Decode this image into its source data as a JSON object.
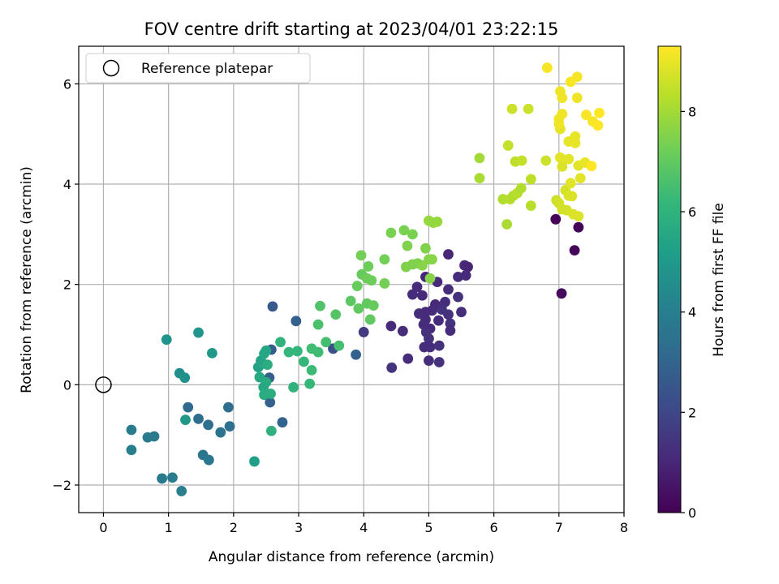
{
  "chart_data": {
    "type": "scatter",
    "title": "FOV centre drift starting at 2023/04/01 23:22:15",
    "xlabel": "Angular distance from reference (arcmin)",
    "ylabel": "Rotation from reference (arcmin)",
    "xlim": [
      -0.38,
      8.0
    ],
    "ylim": [
      -2.55,
      6.75
    ],
    "xticks": [
      "0",
      "1",
      "2",
      "3",
      "4",
      "5",
      "6",
      "7",
      "8"
    ],
    "yticks": [
      "−2",
      "0",
      "2",
      "4",
      "6"
    ],
    "grid": true,
    "legend": {
      "position": "top-left",
      "label": "Reference platepar",
      "marker": "open-circle"
    },
    "reference_point": {
      "x": 0,
      "y": 0
    },
    "colorbar": {
      "label": "Hours from first FF file",
      "range": [
        0,
        9.3
      ],
      "ticks": [
        "0",
        "2",
        "4",
        "6",
        "8"
      ],
      "colormap": "viridis",
      "stops": [
        "#440154",
        "#482878",
        "#3e4989",
        "#31688e",
        "#26828e",
        "#1f9e89",
        "#35b779",
        "#6ece58",
        "#b5de2b",
        "#fde725"
      ]
    },
    "points": [
      {
        "x": 6.95,
        "y": 3.3,
        "t": 0.1
      },
      {
        "x": 7.3,
        "y": 3.14,
        "t": 0.05
      },
      {
        "x": 7.24,
        "y": 2.68,
        "t": 0.15
      },
      {
        "x": 7.04,
        "y": 1.82,
        "t": 0.3
      },
      {
        "x": 5.3,
        "y": 2.6,
        "t": 1.0
      },
      {
        "x": 5.55,
        "y": 2.38,
        "t": 1.1
      },
      {
        "x": 5.6,
        "y": 2.35,
        "t": 1.0
      },
      {
        "x": 5.57,
        "y": 2.18,
        "t": 1.1
      },
      {
        "x": 5.45,
        "y": 2.15,
        "t": 1.2
      },
      {
        "x": 5.13,
        "y": 2.05,
        "t": 1.1
      },
      {
        "x": 4.95,
        "y": 2.15,
        "t": 1.0
      },
      {
        "x": 4.82,
        "y": 1.95,
        "t": 1.1
      },
      {
        "x": 4.75,
        "y": 1.8,
        "t": 1.2
      },
      {
        "x": 4.9,
        "y": 1.78,
        "t": 1.1
      },
      {
        "x": 5.3,
        "y": 1.9,
        "t": 1.2
      },
      {
        "x": 5.45,
        "y": 1.75,
        "t": 1.3
      },
      {
        "x": 5.25,
        "y": 1.65,
        "t": 1.2
      },
      {
        "x": 5.1,
        "y": 1.6,
        "t": 1.1
      },
      {
        "x": 5.2,
        "y": 1.5,
        "t": 1.3
      },
      {
        "x": 5.05,
        "y": 1.48,
        "t": 1.2
      },
      {
        "x": 4.95,
        "y": 1.45,
        "t": 1.1
      },
      {
        "x": 4.85,
        "y": 1.42,
        "t": 1.2
      },
      {
        "x": 5.3,
        "y": 1.4,
        "t": 1.3
      },
      {
        "x": 5.5,
        "y": 1.45,
        "t": 1.2
      },
      {
        "x": 4.95,
        "y": 1.3,
        "t": 1.1
      },
      {
        "x": 5.15,
        "y": 1.28,
        "t": 1.2
      },
      {
        "x": 5.33,
        "y": 1.22,
        "t": 1.3
      },
      {
        "x": 4.92,
        "y": 1.2,
        "t": 1.2
      },
      {
        "x": 5.02,
        "y": 1.12,
        "t": 1.1
      },
      {
        "x": 5.33,
        "y": 1.08,
        "t": 1.2
      },
      {
        "x": 4.96,
        "y": 1.05,
        "t": 1.3
      },
      {
        "x": 4.6,
        "y": 1.07,
        "t": 1.2
      },
      {
        "x": 4.42,
        "y": 1.17,
        "t": 1.1
      },
      {
        "x": 5.0,
        "y": 0.92,
        "t": 1.3
      },
      {
        "x": 4.93,
        "y": 0.75,
        "t": 1.2
      },
      {
        "x": 5.02,
        "y": 0.75,
        "t": 1.2
      },
      {
        "x": 5.16,
        "y": 0.78,
        "t": 1.3
      },
      {
        "x": 4.68,
        "y": 0.52,
        "t": 1.2
      },
      {
        "x": 5.0,
        "y": 0.48,
        "t": 1.2
      },
      {
        "x": 5.16,
        "y": 0.45,
        "t": 1.3
      },
      {
        "x": 4.43,
        "y": 0.34,
        "t": 1.4
      },
      {
        "x": 4.0,
        "y": 1.05,
        "t": 1.6
      },
      {
        "x": 3.53,
        "y": 0.72,
        "t": 2.3
      },
      {
        "x": 2.6,
        "y": 1.56,
        "t": 2.6
      },
      {
        "x": 2.96,
        "y": 1.27,
        "t": 2.8
      },
      {
        "x": 3.88,
        "y": 0.6,
        "t": 2.9
      },
      {
        "x": 2.58,
        "y": 0.7,
        "t": 2.7
      },
      {
        "x": 2.55,
        "y": 0.14,
        "t": 2.8
      },
      {
        "x": 2.56,
        "y": -0.35,
        "t": 2.9
      },
      {
        "x": 2.75,
        "y": -0.75,
        "t": 3.0
      },
      {
        "x": 1.3,
        "y": -0.45,
        "t": 3.2
      },
      {
        "x": 1.46,
        "y": -0.68,
        "t": 3.3
      },
      {
        "x": 1.61,
        "y": -0.8,
        "t": 3.4
      },
      {
        "x": 1.92,
        "y": -0.45,
        "t": 3.3
      },
      {
        "x": 1.94,
        "y": -0.83,
        "t": 3.4
      },
      {
        "x": 1.8,
        "y": -0.95,
        "t": 3.5
      },
      {
        "x": 1.53,
        "y": -1.4,
        "t": 3.6
      },
      {
        "x": 1.62,
        "y": -1.5,
        "t": 3.7
      },
      {
        "x": 0.68,
        "y": -1.05,
        "t": 3.8
      },
      {
        "x": 0.78,
        "y": -1.03,
        "t": 3.8
      },
      {
        "x": 0.43,
        "y": -0.9,
        "t": 3.9
      },
      {
        "x": 0.43,
        "y": -1.3,
        "t": 4.0
      },
      {
        "x": 0.9,
        "y": -1.87,
        "t": 3.8
      },
      {
        "x": 1.06,
        "y": -1.85,
        "t": 3.9
      },
      {
        "x": 1.2,
        "y": -2.12,
        "t": 4.0
      },
      {
        "x": 1.17,
        "y": 0.23,
        "t": 4.6
      },
      {
        "x": 1.25,
        "y": 0.14,
        "t": 4.7
      },
      {
        "x": 0.97,
        "y": 0.9,
        "t": 4.8
      },
      {
        "x": 1.46,
        "y": 1.04,
        "t": 4.8
      },
      {
        "x": 1.67,
        "y": 0.63,
        "t": 5.0
      },
      {
        "x": 1.26,
        "y": -0.7,
        "t": 4.9
      },
      {
        "x": 2.32,
        "y": -1.53,
        "t": 5.2
      },
      {
        "x": 2.38,
        "y": 0.35,
        "t": 5.3
      },
      {
        "x": 2.45,
        "y": 0.42,
        "t": 5.5
      },
      {
        "x": 2.42,
        "y": 0.48,
        "t": 5.4
      },
      {
        "x": 2.47,
        "y": 0.62,
        "t": 5.6
      },
      {
        "x": 2.5,
        "y": 0.68,
        "t": 5.5
      },
      {
        "x": 2.4,
        "y": 0.15,
        "t": 5.6
      },
      {
        "x": 2.5,
        "y": 0.05,
        "t": 5.7
      },
      {
        "x": 2.46,
        "y": -0.05,
        "t": 5.6
      },
      {
        "x": 2.47,
        "y": -0.2,
        "t": 5.7
      },
      {
        "x": 2.57,
        "y": -0.18,
        "t": 5.8
      },
      {
        "x": 2.52,
        "y": 0.4,
        "t": 5.8
      },
      {
        "x": 2.58,
        "y": -0.92,
        "t": 5.9
      },
      {
        "x": 2.72,
        "y": 0.85,
        "t": 6.0
      },
      {
        "x": 2.85,
        "y": 0.65,
        "t": 6.1
      },
      {
        "x": 2.98,
        "y": 0.67,
        "t": 6.1
      },
      {
        "x": 3.08,
        "y": 0.46,
        "t": 6.2
      },
      {
        "x": 2.92,
        "y": -0.05,
        "t": 6.0
      },
      {
        "x": 3.17,
        "y": 0.02,
        "t": 6.2
      },
      {
        "x": 3.2,
        "y": 0.29,
        "t": 6.3
      },
      {
        "x": 3.2,
        "y": 0.72,
        "t": 6.4
      },
      {
        "x": 3.3,
        "y": 0.65,
        "t": 6.4
      },
      {
        "x": 3.42,
        "y": 0.85,
        "t": 6.5
      },
      {
        "x": 3.62,
        "y": 0.78,
        "t": 6.5
      },
      {
        "x": 3.3,
        "y": 1.2,
        "t": 6.6
      },
      {
        "x": 3.33,
        "y": 1.57,
        "t": 6.7
      },
      {
        "x": 3.57,
        "y": 1.4,
        "t": 6.8
      },
      {
        "x": 3.8,
        "y": 1.67,
        "t": 6.9
      },
      {
        "x": 3.92,
        "y": 1.52,
        "t": 7.0
      },
      {
        "x": 4.05,
        "y": 1.62,
        "t": 7.0
      },
      {
        "x": 4.1,
        "y": 1.3,
        "t": 7.0
      },
      {
        "x": 4.15,
        "y": 1.58,
        "t": 7.1
      },
      {
        "x": 3.9,
        "y": 1.97,
        "t": 7.1
      },
      {
        "x": 3.97,
        "y": 2.2,
        "t": 7.1
      },
      {
        "x": 4.05,
        "y": 2.12,
        "t": 7.2
      },
      {
        "x": 4.12,
        "y": 2.08,
        "t": 7.2
      },
      {
        "x": 4.32,
        "y": 2.02,
        "t": 7.3
      },
      {
        "x": 4.07,
        "y": 2.36,
        "t": 7.2
      },
      {
        "x": 3.96,
        "y": 2.58,
        "t": 7.3
      },
      {
        "x": 4.32,
        "y": 2.5,
        "t": 7.3
      },
      {
        "x": 4.42,
        "y": 3.03,
        "t": 7.4
      },
      {
        "x": 4.62,
        "y": 3.08,
        "t": 7.4
      },
      {
        "x": 4.75,
        "y": 3.0,
        "t": 7.4
      },
      {
        "x": 4.67,
        "y": 2.77,
        "t": 7.5
      },
      {
        "x": 4.65,
        "y": 2.35,
        "t": 7.5
      },
      {
        "x": 4.75,
        "y": 2.4,
        "t": 7.5
      },
      {
        "x": 4.83,
        "y": 2.42,
        "t": 7.5
      },
      {
        "x": 4.9,
        "y": 2.38,
        "t": 7.6
      },
      {
        "x": 4.95,
        "y": 2.72,
        "t": 7.5
      },
      {
        "x": 5.0,
        "y": 2.5,
        "t": 7.6
      },
      {
        "x": 5.05,
        "y": 2.5,
        "t": 7.6
      },
      {
        "x": 5.02,
        "y": 2.12,
        "t": 7.6
      },
      {
        "x": 5.0,
        "y": 3.27,
        "t": 7.8
      },
      {
        "x": 5.07,
        "y": 3.23,
        "t": 7.8
      },
      {
        "x": 5.13,
        "y": 3.25,
        "t": 7.8
      },
      {
        "x": 5.78,
        "y": 4.52,
        "t": 8.0
      },
      {
        "x": 5.78,
        "y": 4.12,
        "t": 8.1
      },
      {
        "x": 6.14,
        "y": 3.7,
        "t": 8.2
      },
      {
        "x": 6.2,
        "y": 3.2,
        "t": 8.1
      },
      {
        "x": 6.25,
        "y": 3.7,
        "t": 8.3
      },
      {
        "x": 6.3,
        "y": 3.77,
        "t": 8.2
      },
      {
        "x": 6.36,
        "y": 3.82,
        "t": 8.3
      },
      {
        "x": 6.42,
        "y": 3.92,
        "t": 8.2
      },
      {
        "x": 6.57,
        "y": 3.57,
        "t": 8.3
      },
      {
        "x": 6.57,
        "y": 4.1,
        "t": 8.4
      },
      {
        "x": 6.33,
        "y": 4.45,
        "t": 8.4
      },
      {
        "x": 6.43,
        "y": 4.47,
        "t": 8.5
      },
      {
        "x": 6.22,
        "y": 4.77,
        "t": 8.5
      },
      {
        "x": 6.28,
        "y": 5.5,
        "t": 8.6
      },
      {
        "x": 6.53,
        "y": 5.5,
        "t": 8.6
      },
      {
        "x": 6.8,
        "y": 4.47,
        "t": 8.6
      },
      {
        "x": 6.96,
        "y": 3.68,
        "t": 8.6
      },
      {
        "x": 7.0,
        "y": 3.62,
        "t": 8.7
      },
      {
        "x": 7.05,
        "y": 3.5,
        "t": 8.7
      },
      {
        "x": 7.12,
        "y": 3.48,
        "t": 8.7
      },
      {
        "x": 7.1,
        "y": 3.88,
        "t": 8.7
      },
      {
        "x": 7.15,
        "y": 3.77,
        "t": 8.8
      },
      {
        "x": 7.2,
        "y": 3.76,
        "t": 8.8
      },
      {
        "x": 7.22,
        "y": 3.4,
        "t": 8.8
      },
      {
        "x": 7.3,
        "y": 3.36,
        "t": 8.8
      },
      {
        "x": 7.05,
        "y": 4.35,
        "t": 8.8
      },
      {
        "x": 7.15,
        "y": 4.5,
        "t": 8.9
      },
      {
        "x": 7.02,
        "y": 4.53,
        "t": 8.9
      },
      {
        "x": 7.18,
        "y": 4.02,
        "t": 8.9
      },
      {
        "x": 7.33,
        "y": 4.12,
        "t": 8.9
      },
      {
        "x": 7.3,
        "y": 4.37,
        "t": 8.9
      },
      {
        "x": 7.4,
        "y": 4.43,
        "t": 9.0
      },
      {
        "x": 7.25,
        "y": 4.82,
        "t": 9.0
      },
      {
        "x": 7.15,
        "y": 4.85,
        "t": 9.0
      },
      {
        "x": 7.25,
        "y": 4.95,
        "t": 9.0
      },
      {
        "x": 7.02,
        "y": 5.1,
        "t": 9.0
      },
      {
        "x": 7.0,
        "y": 5.2,
        "t": 9.1
      },
      {
        "x": 7.0,
        "y": 5.3,
        "t": 9.1
      },
      {
        "x": 7.05,
        "y": 5.4,
        "t": 9.1
      },
      {
        "x": 7.05,
        "y": 5.72,
        "t": 9.1
      },
      {
        "x": 7.02,
        "y": 5.85,
        "t": 9.1
      },
      {
        "x": 7.28,
        "y": 5.72,
        "t": 9.1
      },
      {
        "x": 7.18,
        "y": 6.04,
        "t": 9.2
      },
      {
        "x": 7.28,
        "y": 6.14,
        "t": 9.2
      },
      {
        "x": 6.82,
        "y": 6.32,
        "t": 9.2
      },
      {
        "x": 7.42,
        "y": 5.38,
        "t": 9.2
      },
      {
        "x": 7.52,
        "y": 5.25,
        "t": 9.2
      },
      {
        "x": 7.6,
        "y": 5.17,
        "t": 9.3
      },
      {
        "x": 7.62,
        "y": 5.42,
        "t": 9.3
      },
      {
        "x": 7.5,
        "y": 4.36,
        "t": 9.3
      }
    ]
  }
}
